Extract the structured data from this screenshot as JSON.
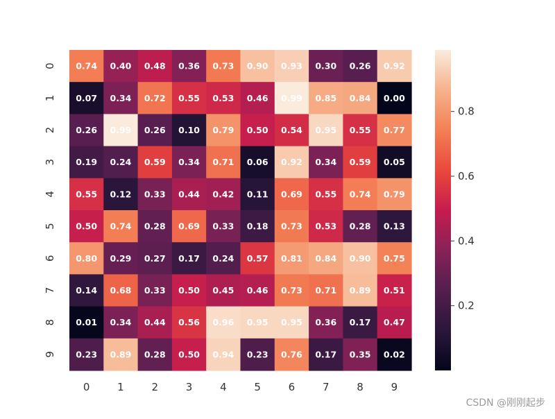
{
  "chart_data": {
    "type": "heatmap",
    "title": "",
    "xlabel": "",
    "ylabel": "",
    "x_categories": [
      "0",
      "1",
      "2",
      "3",
      "4",
      "5",
      "6",
      "7",
      "8",
      "9"
    ],
    "y_categories": [
      "0",
      "1",
      "2",
      "3",
      "4",
      "5",
      "6",
      "7",
      "8",
      "9"
    ],
    "values": [
      [
        0.74,
        0.4,
        0.48,
        0.36,
        0.73,
        0.9,
        0.93,
        0.3,
        0.26,
        0.92
      ],
      [
        0.07,
        0.34,
        0.72,
        0.55,
        0.53,
        0.46,
        0.99,
        0.85,
        0.84,
        0.0
      ],
      [
        0.26,
        0.99,
        0.26,
        0.1,
        0.79,
        0.5,
        0.54,
        0.95,
        0.55,
        0.77
      ],
      [
        0.19,
        0.24,
        0.59,
        0.34,
        0.71,
        0.06,
        0.92,
        0.34,
        0.59,
        0.05
      ],
      [
        0.55,
        0.12,
        0.33,
        0.44,
        0.42,
        0.11,
        0.69,
        0.55,
        0.74,
        0.79
      ],
      [
        0.5,
        0.74,
        0.28,
        0.69,
        0.33,
        0.18,
        0.73,
        0.53,
        0.28,
        0.13
      ],
      [
        0.8,
        0.29,
        0.27,
        0.17,
        0.24,
        0.57,
        0.81,
        0.84,
        0.9,
        0.75
      ],
      [
        0.14,
        0.68,
        0.33,
        0.5,
        0.45,
        0.46,
        0.73,
        0.71,
        0.89,
        0.51
      ],
      [
        0.01,
        0.34,
        0.44,
        0.56,
        0.96,
        0.95,
        0.95,
        0.36,
        0.17,
        0.47
      ],
      [
        0.23,
        0.89,
        0.28,
        0.5,
        0.94,
        0.23,
        0.76,
        0.17,
        0.35,
        0.02
      ]
    ],
    "value_format": "0.00",
    "colormap": "rocket",
    "colorbar": {
      "range": [
        0.0,
        0.99
      ],
      "ticks": [
        0.2,
        0.4,
        0.6,
        0.8
      ],
      "tick_labels": [
        "0.2",
        "0.4",
        "0.6",
        "0.8"
      ],
      "position": "right"
    },
    "grid": false
  },
  "watermark": "CSDN @刚刚起步"
}
